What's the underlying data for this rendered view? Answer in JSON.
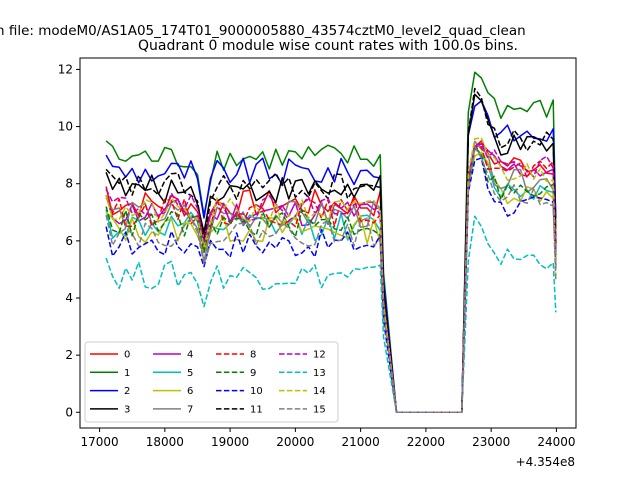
{
  "figure": {
    "suptitle": "n file: modeM0/AS1A05_174T01_9000005880_43574cztM0_level2_quad_clean",
    "title": "Quadrant 0 module wise count rates with 100.0s bins.",
    "x_offset_label": "+4.354e8"
  },
  "chart_data": {
    "type": "line",
    "title": "Quadrant 0 module wise count rates with 100.0s bins.",
    "xlim": [
      16700,
      24300
    ],
    "ylim": [
      -0.55,
      12.4
    ],
    "x_ticks": [
      17000,
      18000,
      19000,
      20000,
      21000,
      22000,
      23000,
      24000
    ],
    "x_tick_labels": [
      "17000",
      "18000",
      "19000",
      "20000",
      "21000",
      "22000",
      "23000",
      "24000"
    ],
    "y_ticks": [
      0,
      2,
      4,
      6,
      8,
      10,
      12
    ],
    "y_tick_labels": [
      "0",
      "2",
      "4",
      "6",
      "8",
      "10",
      "12"
    ],
    "x_offset": "+4.354e8",
    "grid": false,
    "legend_placement": "lower-left",
    "legend_columns": 4,
    "segments": {
      "seg1_start": 17100,
      "seg1_end": 21300,
      "gap_start": 21550,
      "gap_end": 22550,
      "seg2_start": 22650,
      "seg2_end": 23950,
      "dip_time": 18580
    },
    "series": [
      {
        "name": "0",
        "color": "#ff0000",
        "dash": "solid",
        "level1": 7.3,
        "level2": 8.7,
        "dip": 6.2,
        "peak2": 9.5,
        "end": 6.4
      },
      {
        "name": "1",
        "color": "#008000",
        "dash": "solid",
        "level1": 8.9,
        "level2": 10.6,
        "dip": 6.9,
        "peak2": 11.7,
        "end": 6.5
      },
      {
        "name": "2",
        "color": "#0000ff",
        "dash": "solid",
        "level1": 8.4,
        "level2": 9.7,
        "dip": 6.8,
        "peak2": 10.9,
        "end": 6.8
      },
      {
        "name": "3",
        "color": "#000000",
        "dash": "solid",
        "level1": 7.8,
        "level2": 9.3,
        "dip": 6.3,
        "peak2": 10.9,
        "end": 5.7
      },
      {
        "name": "4",
        "color": "#bf00bf",
        "dash": "solid",
        "level1": 7.0,
        "level2": 8.5,
        "dip": 6.0,
        "peak2": 9.4,
        "end": 5.6
      },
      {
        "name": "5",
        "color": "#00bfbf",
        "dash": "solid",
        "level1": 6.5,
        "level2": 7.8,
        "dip": 5.8,
        "peak2": 9.0,
        "end": 5.4
      },
      {
        "name": "6",
        "color": "#bfbf00",
        "dash": "solid",
        "level1": 6.4,
        "level2": 7.7,
        "dip": 5.6,
        "peak2": 9.1,
        "end": 5.2
      },
      {
        "name": "7",
        "color": "#808080",
        "dash": "solid",
        "level1": 6.9,
        "level2": 8.1,
        "dip": 5.3,
        "peak2": 9.2,
        "end": 5.1
      },
      {
        "name": "8",
        "color": "#ff0000",
        "dash": "dashed",
        "level1": 7.0,
        "level2": 8.4,
        "dip": 5.7,
        "peak2": 9.3,
        "end": 5.9
      },
      {
        "name": "9",
        "color": "#008000",
        "dash": "dashed",
        "level1": 6.6,
        "level2": 7.7,
        "dip": 5.6,
        "peak2": 9.0,
        "end": 5.5
      },
      {
        "name": "10",
        "color": "#0000ff",
        "dash": "dashed",
        "level1": 5.9,
        "level2": 7.2,
        "dip": 5.1,
        "peak2": 8.9,
        "end": 5.0
      },
      {
        "name": "11",
        "color": "#000000",
        "dash": "dashed",
        "level1": 7.9,
        "level2": 9.5,
        "dip": 6.0,
        "peak2": 11.0,
        "end": 5.9
      },
      {
        "name": "12",
        "color": "#bf00bf",
        "dash": "dashed",
        "level1": 7.2,
        "level2": 8.6,
        "dip": 5.9,
        "peak2": 9.4,
        "end": 5.6
      },
      {
        "name": "13",
        "color": "#00bfbf",
        "dash": "dashed",
        "level1": 4.8,
        "level2": 5.4,
        "dip": 3.7,
        "peak2": 6.5,
        "end": 3.5
      },
      {
        "name": "14",
        "color": "#bfbf00",
        "dash": "dashed",
        "level1": 7.0,
        "level2": 8.4,
        "dip": 5.8,
        "peak2": 9.6,
        "end": 4.7
      },
      {
        "name": "15",
        "color": "#808080",
        "dash": "dashed",
        "level1": 6.3,
        "level2": 7.6,
        "dip": 5.2,
        "peak2": 8.9,
        "end": 4.6
      }
    ]
  }
}
